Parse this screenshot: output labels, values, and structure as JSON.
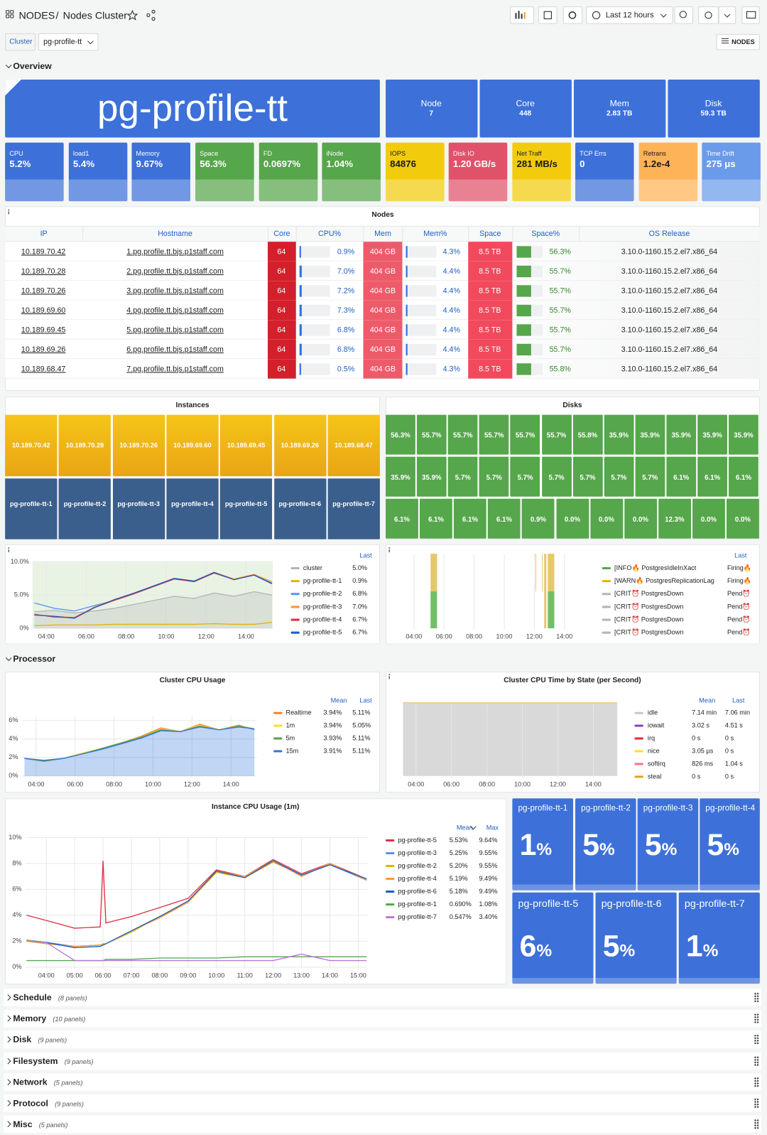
{
  "header": {
    "breadcrumb": "NODES",
    "separator": "/",
    "title": "Nodes Cluster",
    "time_range": "Last 12 hours"
  },
  "variables": {
    "label": "Cluster",
    "value": "pg-profile-tt",
    "nodes_button": "NODES"
  },
  "rows": {
    "overview": "Overview",
    "processor": "Processor"
  },
  "banner": {
    "title": "pg-profile-tt",
    "color": "#3d71d9",
    "stats": [
      {
        "label": "Node",
        "value": "7"
      },
      {
        "label": "Core",
        "value": "448"
      },
      {
        "label": "Mem",
        "value": "2.83 TB"
      },
      {
        "label": "Disk",
        "value": "59.3 TB"
      }
    ]
  },
  "stats": [
    {
      "label": "CPU",
      "value": "5.2%",
      "color": "#3d71d9"
    },
    {
      "label": "load1",
      "value": "5.4%",
      "color": "#3d71d9"
    },
    {
      "label": "Memory",
      "value": "9.67%",
      "color": "#3d71d9"
    },
    {
      "label": "Space",
      "value": "56.3%",
      "color": "#56a64b"
    },
    {
      "label": "FD",
      "value": "0.0697%",
      "color": "#56a64b"
    },
    {
      "label": "iNode",
      "value": "1.04%",
      "color": "#56a64b"
    },
    {
      "label": "IOPS",
      "value": "84876",
      "color": "#f2cc0c",
      "text_color": "#1a1a1a"
    },
    {
      "label": "Disk IO",
      "value": "1.20 GB/s",
      "color": "#e0526a"
    },
    {
      "label": "Net Traff",
      "value": "281 MB/s",
      "color": "#f2cc0c",
      "text_color": "#1a1a1a"
    },
    {
      "label": "TCP Errs",
      "value": "0",
      "color": "#3d71d9"
    },
    {
      "label": "Retrans",
      "value": "1.2e-4",
      "color": "#ffb357",
      "text_color": "#1a1a1a"
    },
    {
      "label": "Time Drift",
      "value": "275 μs",
      "color": "#6a9bea"
    }
  ],
  "nodes_table": {
    "title": "Nodes",
    "gauge_max": 100,
    "columns": [
      "IP",
      "Hostname",
      "Core",
      "CPU%",
      "Mem",
      "Mem%",
      "Space",
      "Space%",
      "OS Release"
    ],
    "rows": [
      [
        "10.189.70.42",
        "1.pg.profile.tt.bjs.p1staff.com",
        "64",
        {
          "value": 0.9,
          "label": "0.9%"
        },
        "404 GB",
        {
          "value": 4.3,
          "label": "4.3%"
        },
        "8.5 TB",
        {
          "value": 56.3,
          "label": "56.3%"
        },
        "3.10.0-1160.15.2.el7.x86_64"
      ],
      [
        "10.189.70.28",
        "2.pg.profile.tt.bjs.p1staff.com",
        "64",
        {
          "value": 7.0,
          "label": "7.0%"
        },
        "404 GB",
        {
          "value": 4.4,
          "label": "4.4%"
        },
        "8.5 TB",
        {
          "value": 55.7,
          "label": "55.7%"
        },
        "3.10.0-1160.15.2.el7.x86_64"
      ],
      [
        "10.189.70.26",
        "3.pg.profile.tt.bjs.p1staff.com",
        "64",
        {
          "value": 7.2,
          "label": "7.2%"
        },
        "404 GB",
        {
          "value": 4.4,
          "label": "4.4%"
        },
        "8.5 TB",
        {
          "value": 55.7,
          "label": "55.7%"
        },
        "3.10.0-1160.15.2.el7.x86_64"
      ],
      [
        "10.189.69.60",
        "4.pg.profile.tt.bjs.p1staff.com",
        "64",
        {
          "value": 7.3,
          "label": "7.3%"
        },
        "404 GB",
        {
          "value": 4.4,
          "label": "4.4%"
        },
        "8.5 TB",
        {
          "value": 55.7,
          "label": "55.7%"
        },
        "3.10.0-1160.15.2.el7.x86_64"
      ],
      [
        "10.189.69.45",
        "5.pg.profile.tt.bjs.p1staff.com",
        "64",
        {
          "value": 6.8,
          "label": "6.8%"
        },
        "404 GB",
        {
          "value": 4.4,
          "label": "4.4%"
        },
        "8.5 TB",
        {
          "value": 55.7,
          "label": "55.7%"
        },
        "3.10.0-1160.15.2.el7.x86_64"
      ],
      [
        "10.189.69.26",
        "6.pg.profile.tt.bjs.p1staff.com",
        "64",
        {
          "value": 6.8,
          "label": "6.8%"
        },
        "404 GB",
        {
          "value": 4.4,
          "label": "4.4%"
        },
        "8.5 TB",
        {
          "value": 55.7,
          "label": "55.7%"
        },
        "3.10.0-1160.15.2.el7.x86_64"
      ],
      [
        "10.189.68.47",
        "7.pg.profile.tt.bjs.p1staff.com",
        "64",
        {
          "value": 0.5,
          "label": "0.5%"
        },
        "404 GB",
        {
          "value": 4.3,
          "label": "4.3%"
        },
        "8.5 TB",
        {
          "value": 55.8,
          "label": "55.8%"
        },
        "3.10.0-1160.15.2.el7.x86_64"
      ]
    ]
  },
  "instances": {
    "title": "Instances",
    "ips": [
      "10.189.70.42",
      "10.189.70.28",
      "10.189.70.26",
      "10.189.69.60",
      "10.189.69.45",
      "10.189.69.26",
      "10.189.68.47"
    ],
    "names": [
      "pg-profile-tt-1",
      "pg-profile-tt-2",
      "pg-profile-tt-3",
      "pg-profile-tt-4",
      "pg-profile-tt-5",
      "pg-profile-tt-6",
      "pg-profile-tt-7"
    ]
  },
  "disks": {
    "title": "Disks",
    "color": "#56a64b",
    "values": [
      "56.3%",
      "55.7%",
      "55.7%",
      "55.7%",
      "55.7%",
      "55.7%",
      "55.8%",
      "35.9%",
      "35.9%",
      "35.9%",
      "35.9%",
      "35.9%",
      "35.9%",
      "35.9%",
      "5.7%",
      "5.7%",
      "5.7%",
      "5.7%",
      "5.7%",
      "5.7%",
      "5.7%",
      "6.1%",
      "6.1%",
      "6.1%",
      "6.1%",
      "6.1%",
      "6.1%",
      "6.1%",
      "0.9%",
      "0.0%",
      "0.0%",
      "0.0%",
      "12.3%",
      "0.0%",
      "0.0%"
    ]
  },
  "overview_cpu": {
    "type": "line",
    "x": [
      3.4,
      4.4,
      5.4,
      6.4,
      7.4,
      8.4,
      9.4,
      10.4,
      11.4,
      12.4,
      13.4,
      14.4,
      15.3
    ],
    "xlim": [
      3.31,
      15.34
    ],
    "xticks": [
      {
        "value": 4,
        "label": "04:00"
      },
      {
        "value": 6,
        "label": "06:00"
      },
      {
        "value": 8,
        "label": "08:00"
      },
      {
        "value": 10,
        "label": "10:00"
      },
      {
        "value": 12,
        "label": "12:00"
      },
      {
        "value": 14,
        "label": "14:00"
      }
    ],
    "ylim": [
      0,
      10
    ],
    "yticks": [
      {
        "value": 0,
        "label": "0%"
      },
      {
        "value": 5,
        "label": "5.0%"
      },
      {
        "value": 10,
        "label": "10.0%"
      }
    ],
    "legend_headers": [
      "Last"
    ],
    "series": [
      {
        "name": "cluster",
        "color": "#b5b5b5",
        "area": true,
        "values": [
          2.5,
          2.7,
          2.3,
          2.6,
          3.0,
          3.6,
          4.2,
          4.8,
          4.5,
          5.3,
          4.8,
          5.5,
          5.0
        ],
        "stats": [
          "5.0%"
        ]
      },
      {
        "name": "pg-profile-tt-1",
        "color": "#e0b400",
        "values": [
          0.4,
          0.5,
          0.5,
          0.5,
          0.6,
          0.6,
          0.6,
          0.6,
          0.6,
          0.7,
          0.6,
          0.6,
          0.9
        ],
        "stats": [
          "0.9%"
        ]
      },
      {
        "name": "pg-profile-tt-2",
        "color": "#5794f2",
        "values": [
          3.8,
          3.0,
          2.6,
          3.4,
          4.2,
          5.2,
          6.3,
          7.4,
          7.0,
          8.3,
          7.3,
          8.0,
          6.8
        ],
        "stats": [
          "6.8%"
        ]
      },
      {
        "name": "pg-profile-tt-3",
        "color": "#ff9830",
        "values": [
          2.0,
          1.8,
          1.6,
          3.2,
          4.3,
          5.3,
          6.4,
          7.5,
          7.1,
          8.4,
          7.4,
          8.1,
          7.0
        ],
        "stats": [
          "7.0%"
        ]
      },
      {
        "name": "pg-profile-tt-4",
        "color": "#e02f44",
        "values": [
          2.1,
          1.7,
          1.6,
          3.1,
          4.2,
          5.2,
          6.3,
          7.4,
          7.0,
          8.3,
          7.3,
          8.0,
          6.7
        ],
        "stats": [
          "6.7%"
        ]
      },
      {
        "name": "pg-profile-tt-5",
        "color": "#1f60c4",
        "values": [
          2.0,
          1.8,
          1.5,
          3.1,
          4.3,
          5.3,
          6.4,
          7.5,
          7.1,
          8.4,
          7.3,
          8.0,
          6.7
        ],
        "stats": [
          "6.7%"
        ]
      }
    ]
  },
  "alerts": {
    "type": "state-timeline",
    "xlim": [
      3.42,
      14.72
    ],
    "xticks": [
      {
        "value": 4,
        "label": "04:00"
      },
      {
        "value": 6,
        "label": "06:00"
      },
      {
        "value": 8,
        "label": "08:00"
      },
      {
        "value": 10,
        "label": "10:00"
      },
      {
        "value": 12,
        "label": "12:00"
      },
      {
        "value": 14,
        "label": "14:00"
      }
    ],
    "legend_headers": [
      "Last"
    ],
    "series": [
      {
        "name": "[INFO🔥 PostgresIdleInXact",
        "color": "#56a64b",
        "stats": [
          "Firing🔥"
        ]
      },
      {
        "name": "[WARN🔥 PostgresReplicationLag",
        "color": "#e0b400",
        "stats": [
          "Firing🔥"
        ]
      },
      {
        "name": "[CRIT⏰ PostgresDown",
        "color": "#b5b5b5",
        "stats": [
          "Pend⏰"
        ]
      },
      {
        "name": "[CRIT⏰ PostgresDown",
        "color": "#b5b5b5",
        "stats": [
          "Pend⏰"
        ]
      },
      {
        "name": "[CRIT⏰ PostgresDown",
        "color": "#b5b5b5",
        "stats": [
          "Pend⏰"
        ]
      },
      {
        "name": "[CRIT⏰ PostgresDown",
        "color": "#b5b5b5",
        "stats": [
          "Pend⏰"
        ]
      }
    ]
  },
  "cluster_cpu": {
    "type": "line",
    "title": "Cluster CPU Usage",
    "x": [
      3.4,
      4.4,
      5.4,
      6.4,
      7.4,
      8.4,
      9.4,
      10.4,
      11.4,
      12.4,
      13.4,
      14.4,
      15.2
    ],
    "xlim": [
      3.26,
      15.33
    ],
    "xticks": [
      {
        "value": 4,
        "label": "04:00"
      },
      {
        "value": 6,
        "label": "06:00"
      },
      {
        "value": 8,
        "label": "08:00"
      },
      {
        "value": 10,
        "label": "10:00"
      },
      {
        "value": 12,
        "label": "12:00"
      },
      {
        "value": 14,
        "label": "14:00"
      }
    ],
    "ylim": [
      0,
      6.5
    ],
    "yticks": [
      {
        "value": 0,
        "label": "0%"
      },
      {
        "value": 2,
        "label": "2%"
      },
      {
        "value": 4,
        "label": "4%"
      },
      {
        "value": 6,
        "label": "6%"
      }
    ],
    "legend_headers": [
      "Mean",
      "Last"
    ],
    "series": [
      {
        "name": "Realtime",
        "color": "#ff7f2a",
        "values": [
          1.9,
          1.6,
          1.9,
          2.5,
          3.0,
          3.6,
          4.3,
          5.2,
          4.8,
          5.6,
          5.0,
          5.5,
          5.0
        ],
        "stats": [
          "3.94%",
          "5.11%"
        ]
      },
      {
        "name": "1m",
        "color": "#fade2a",
        "values": [
          1.9,
          1.6,
          1.9,
          2.5,
          3.0,
          3.6,
          4.2,
          5.1,
          4.8,
          5.5,
          5.0,
          5.4,
          5.1
        ],
        "stats": [
          "3.94%",
          "5.05%"
        ]
      },
      {
        "name": "5m",
        "color": "#56a64b",
        "values": [
          1.9,
          1.6,
          1.9,
          2.4,
          3.0,
          3.6,
          4.2,
          5.0,
          4.8,
          5.4,
          5.0,
          5.4,
          5.1
        ],
        "stats": [
          "3.93%",
          "5.11%"
        ]
      },
      {
        "name": "15m",
        "color": "#3274d9",
        "area": true,
        "values": [
          1.9,
          1.7,
          1.9,
          2.4,
          2.9,
          3.5,
          4.1,
          4.9,
          4.8,
          5.3,
          5.0,
          5.3,
          5.1
        ],
        "stats": [
          "3.91%",
          "5.11%"
        ]
      }
    ]
  },
  "cpu_state": {
    "type": "area",
    "title": "Cluster CPU Time by State (per Second)",
    "xlim": [
      3.27,
      15.35
    ],
    "xticks": [
      {
        "value": 4,
        "label": "04:00"
      },
      {
        "value": 6,
        "label": "06:00"
      },
      {
        "value": 8,
        "label": "08:00"
      },
      {
        "value": 10,
        "label": "10:00"
      },
      {
        "value": 12,
        "label": "12:00"
      },
      {
        "value": 14,
        "label": "14:00"
      }
    ],
    "legend_headers": [
      "Mean",
      "Last"
    ],
    "series": [
      {
        "name": "idle",
        "color": "#c8c8c8",
        "stats": [
          "7.14 min",
          "7.06 min"
        ]
      },
      {
        "name": "iowait",
        "color": "#8f3bb8",
        "stats": [
          "3.02 s",
          "4.51 s"
        ]
      },
      {
        "name": "irq",
        "color": "#e02f44",
        "stats": [
          "0 s",
          "0 s"
        ]
      },
      {
        "name": "nice",
        "color": "#fade2a",
        "stats": [
          "3.05 µs",
          "0 s"
        ]
      },
      {
        "name": "softirq",
        "color": "#ff7383",
        "stats": [
          "826 ms",
          "1.04 s"
        ]
      },
      {
        "name": "steal",
        "color": "#e0a020",
        "stats": [
          "0 s",
          "0 s"
        ]
      }
    ]
  },
  "instance_cpu": {
    "type": "line",
    "title": "Instance CPU Usage (1m)",
    "x": [
      3.3,
      4,
      5,
      5.9,
      6,
      6.1,
      7,
      8,
      9,
      10,
      11,
      12,
      13,
      14,
      15.3
    ],
    "xlim": [
      3.26,
      15.33
    ],
    "xticks": [
      {
        "value": 4,
        "label": "04:00"
      },
      {
        "value": 5,
        "label": "05:00"
      },
      {
        "value": 6,
        "label": "06:00"
      },
      {
        "value": 7,
        "label": "07:00"
      },
      {
        "value": 8,
        "label": "08:00"
      },
      {
        "value": 9,
        "label": "09:00"
      },
      {
        "value": 10,
        "label": "10:00"
      },
      {
        "value": 11,
        "label": "11:00"
      },
      {
        "value": 12,
        "label": "12:00"
      },
      {
        "value": 13,
        "label": "13:00"
      },
      {
        "value": 14,
        "label": "14:00"
      },
      {
        "value": 15,
        "label": "15:00"
      }
    ],
    "ylim": [
      0,
      10
    ],
    "yticks": [
      {
        "value": 0,
        "label": "0%"
      },
      {
        "value": 2,
        "label": "2%"
      },
      {
        "value": 4,
        "label": "4%"
      },
      {
        "value": 6,
        "label": "6%"
      },
      {
        "value": 8,
        "label": "8%"
      },
      {
        "value": 10,
        "label": "10%"
      }
    ],
    "legend_headers": [
      "Mean",
      "Max"
    ],
    "series": [
      {
        "name": "pg-profile-tt-5",
        "color": "#e02f44",
        "values": [
          4.0,
          3.6,
          3.0,
          3.1,
          8.2,
          3.4,
          3.9,
          4.6,
          5.3,
          7.5,
          7.0,
          8.3,
          7.2,
          8.0,
          6.8
        ],
        "stats": [
          "5.53%",
          "9.64%"
        ]
      },
      {
        "name": "pg-profile-tt-3",
        "color": "#5794f2",
        "values": [
          2.1,
          1.9,
          1.6,
          1.7,
          1.7,
          1.8,
          2.8,
          3.9,
          5.0,
          7.4,
          6.9,
          8.2,
          7.1,
          7.9,
          6.7
        ],
        "stats": [
          "5.25%",
          "9.55%"
        ]
      },
      {
        "name": "pg-profile-tt-2",
        "color": "#e0b400",
        "values": [
          2.0,
          1.8,
          1.6,
          1.7,
          1.7,
          1.8,
          2.7,
          3.9,
          5.0,
          7.3,
          6.9,
          8.1,
          7.1,
          7.9,
          6.8
        ],
        "stats": [
          "5.20%",
          "9.55%"
        ]
      },
      {
        "name": "pg-profile-tt-4",
        "color": "#ff9830",
        "values": [
          2.1,
          1.8,
          1.6,
          1.7,
          1.8,
          1.8,
          2.8,
          3.8,
          5.0,
          7.4,
          7.0,
          8.2,
          7.0,
          8.0,
          6.7
        ],
        "stats": [
          "5.19%",
          "9.49%"
        ]
      },
      {
        "name": "pg-profile-tt-6",
        "color": "#1f60c4",
        "values": [
          2.0,
          1.9,
          1.5,
          1.6,
          1.7,
          1.8,
          2.8,
          3.9,
          5.1,
          7.4,
          6.9,
          8.2,
          7.1,
          7.9,
          6.8
        ],
        "stats": [
          "5.18%",
          "9.49%"
        ]
      },
      {
        "name": "pg-profile-tt-1",
        "color": "#56a64b",
        "values": [
          0.5,
          0.5,
          0.5,
          0.5,
          0.5,
          0.6,
          0.6,
          0.7,
          0.7,
          0.7,
          0.8,
          0.8,
          0.8,
          0.8,
          0.8
        ],
        "stats": [
          "0.690%",
          "1.08%"
        ]
      },
      {
        "name": "pg-profile-tt-7",
        "color": "#b877d9",
        "values": [
          2.0,
          1.9,
          0.5,
          0.5,
          0.5,
          0.5,
          0.5,
          0.5,
          0.5,
          0.5,
          0.5,
          0.5,
          1.0,
          0.5,
          0.5
        ],
        "stats": [
          "0.547%",
          "3.40%"
        ]
      }
    ]
  },
  "instance_stats": {
    "color": "#3d71d9",
    "tiles": [
      {
        "name": "pg-profile-tt-1",
        "value": "1",
        "unit": "%"
      },
      {
        "name": "pg-profile-tt-2",
        "value": "5",
        "unit": "%"
      },
      {
        "name": "pg-profile-tt-3",
        "value": "5",
        "unit": "%"
      },
      {
        "name": "pg-profile-tt-4",
        "value": "5",
        "unit": "%"
      },
      {
        "name": "pg-profile-tt-5",
        "value": "6",
        "unit": "%"
      },
      {
        "name": "pg-profile-tt-6",
        "value": "5",
        "unit": "%"
      },
      {
        "name": "pg-profile-tt-7",
        "value": "1",
        "unit": "%"
      }
    ]
  },
  "collapsed_rows": [
    {
      "title": "Schedule",
      "count": "(8 panels)"
    },
    {
      "title": "Memory",
      "count": "(10 panels)"
    },
    {
      "title": "Disk",
      "count": "(9 panels)"
    },
    {
      "title": "Filesystem",
      "count": "(9 panels)"
    },
    {
      "title": "Network",
      "count": "(5 panels)"
    },
    {
      "title": "Protocol",
      "count": "(9 panels)"
    },
    {
      "title": "Misc",
      "count": "(5 panels)"
    }
  ]
}
